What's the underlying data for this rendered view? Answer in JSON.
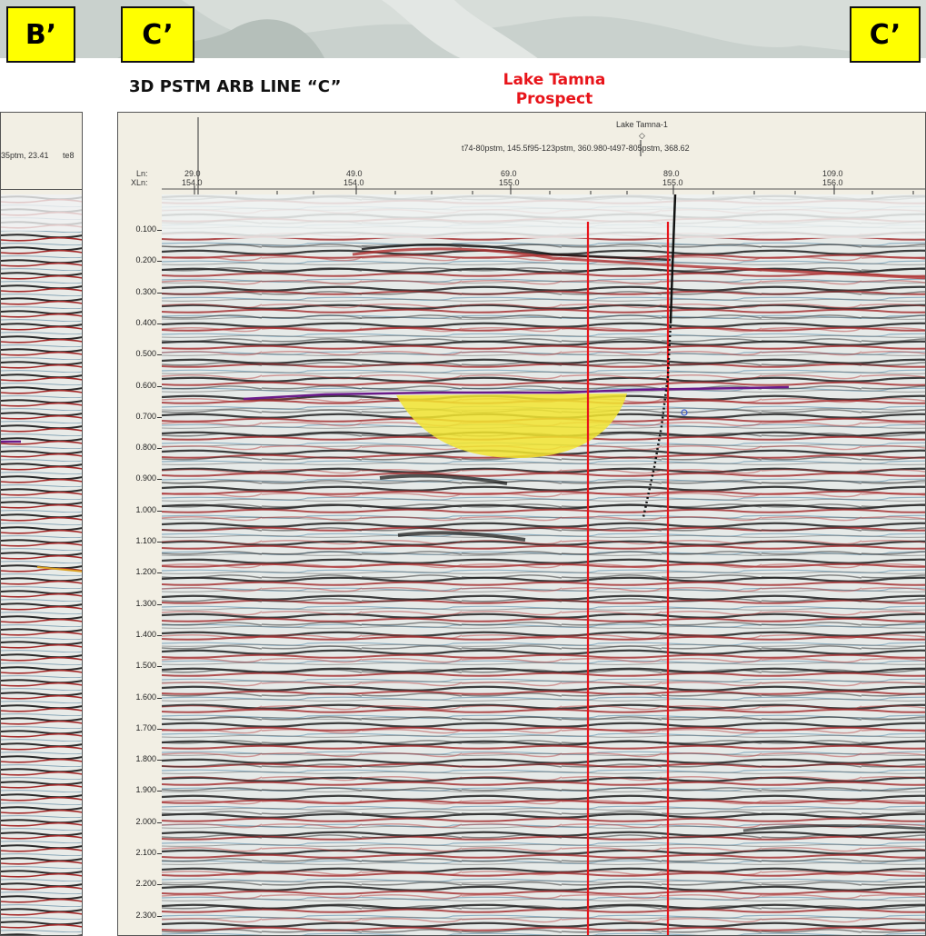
{
  "labels": {
    "b_prime": "B’",
    "c_prime_left": "C’",
    "c_prime_right": "C’"
  },
  "title": "3D PSTM ARB LINE “C”",
  "prospect": {
    "line1": "Lake Tamna",
    "line2": "Prospect"
  },
  "left_panel": {
    "header_text_1": "35ptm, 23.41",
    "header_text_2": "te8"
  },
  "main_panel": {
    "well_name": "Lake Tamna-1",
    "well_symbol": "◇",
    "header_line": "t74-80pstm, 145.5f95-123pstm, 360.980-t497-805pstm, 368.62",
    "ln_label": "Ln:",
    "xln_label": "XLn:",
    "top_ticks": [
      {
        "ln": "29.0",
        "xln": "154.0"
      },
      {
        "ln": "49.0",
        "xln": "154.0"
      },
      {
        "ln": "69.0",
        "xln": "155.0"
      },
      {
        "ln": "89.0",
        "xln": "155.0"
      },
      {
        "ln": "109.0",
        "xln": "156.0"
      }
    ],
    "time_ticks": [
      "0.100",
      "0.200",
      "0.300",
      "0.400",
      "0.500",
      "0.600",
      "0.700",
      "0.800",
      "0.900",
      "1.000",
      "1.100",
      "1.200",
      "1.300",
      "1.400",
      "1.500",
      "1.600",
      "1.700",
      "1.800",
      "1.900",
      "2.000",
      "2.100",
      "2.200",
      "2.300"
    ]
  },
  "colors": {
    "label_bg": "#ffff00",
    "prospect_red": "#e8141a",
    "horizon_purple": "#6a1a8a",
    "prospect_fill": "#f2e530",
    "marker_line": "#e8141a"
  }
}
